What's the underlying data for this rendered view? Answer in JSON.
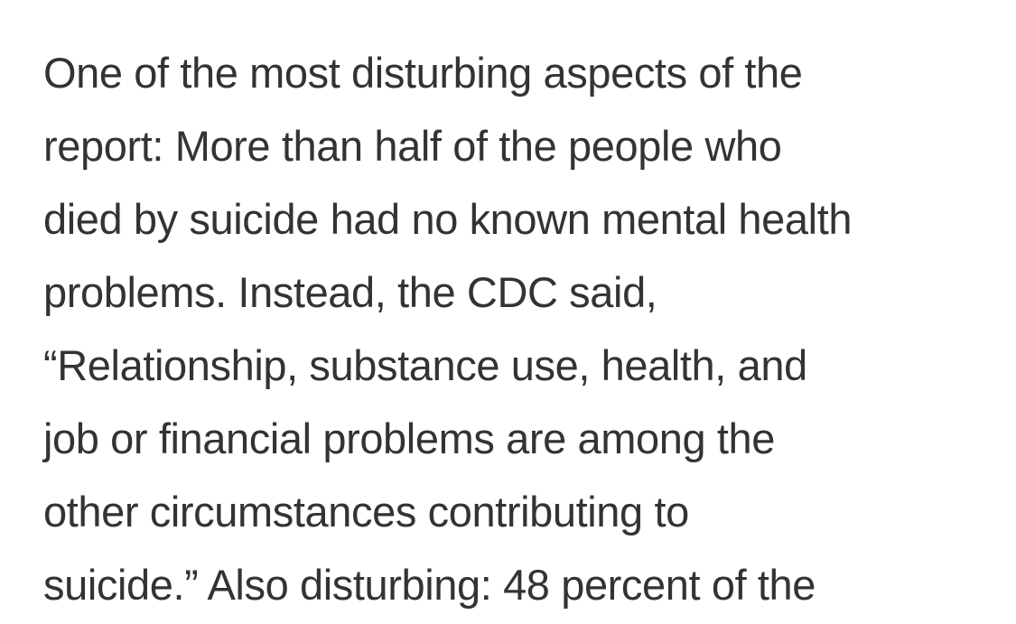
{
  "article": {
    "lines": [
      "One of the most disturbing aspects of the",
      "report: More than half of the people who",
      "died by suicide had no known mental health",
      "problems. Instead, the CDC said,",
      "“Relationship, substance use, health, and",
      "job or financial problems are among the",
      "other circumstances contributing to",
      "suicide.” Also disturbing: 48 percent of the"
    ]
  }
}
